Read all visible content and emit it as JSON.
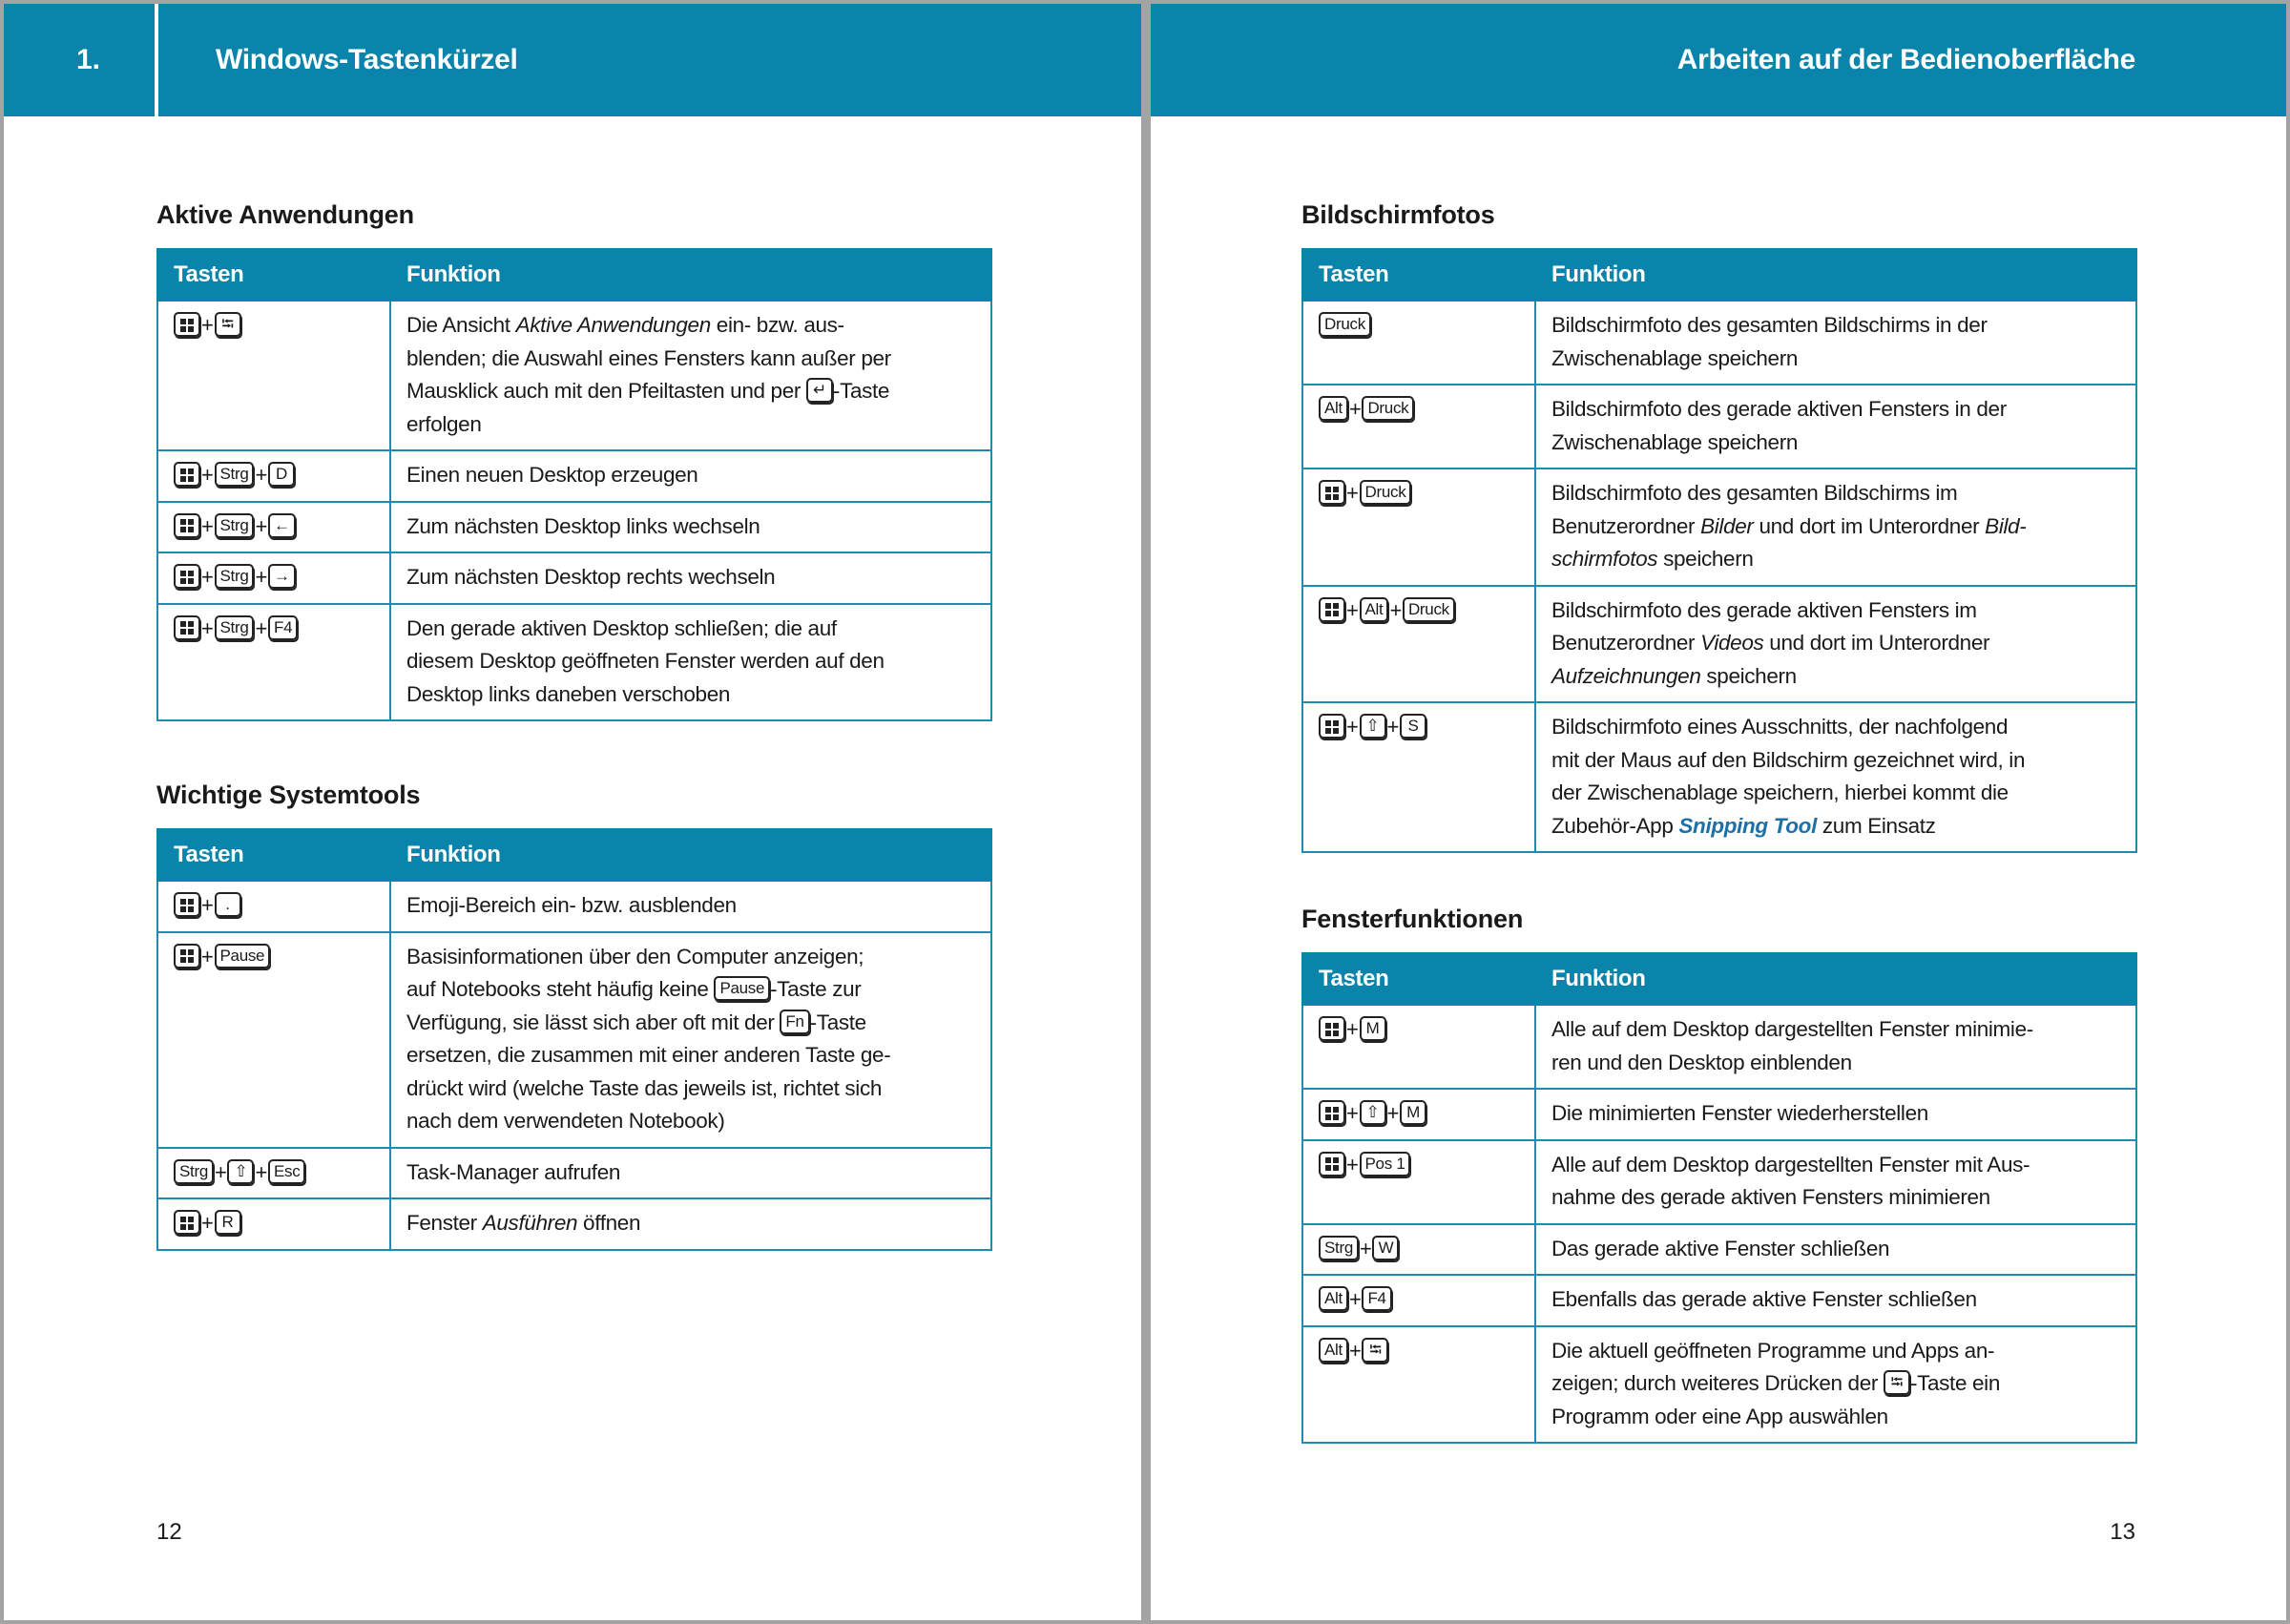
{
  "colors": {
    "accent": "#0a84aa",
    "link": "#1d6fa6"
  },
  "left_page": {
    "chapter_number": "1.",
    "chapter_title": "Windows-Tastenkürzel",
    "page_number": "12"
  },
  "right_page": {
    "running_title": "Arbeiten auf der Bedienoberfläche",
    "page_number": "13"
  },
  "tables": [
    {
      "heading": "Aktive Anwendungen",
      "col_keys": "Tasten",
      "col_function": "Funktion",
      "rows": [
        {
          "keys": [
            {
              "icon": "windows-logo"
            },
            {
              "icon": "tab",
              "label": "⭾"
            }
          ],
          "lines": [
            [
              {
                "t": "Die Ansicht "
              },
              {
                "t": "Aktive Anwendungen",
                "style": "italic"
              },
              {
                "t": " ein- bzw. aus-"
              }
            ],
            [
              {
                "t": "blenden; die Auswahl eines Fensters kann außer per"
              }
            ],
            [
              {
                "t": "Mausklick auch mit den Pfeiltasten und per "
              },
              {
                "key": {
                  "icon": "enter",
                  "label": "↵"
                }
              },
              {
                "t": "-Taste"
              }
            ],
            [
              {
                "t": "erfolgen"
              }
            ]
          ]
        },
        {
          "keys": [
            {
              "icon": "windows-logo"
            },
            {
              "label": "Strg"
            },
            {
              "label": "D"
            }
          ],
          "lines": [
            [
              {
                "t": "Einen neuen Desktop erzeugen"
              }
            ]
          ]
        },
        {
          "keys": [
            {
              "icon": "windows-logo"
            },
            {
              "label": "Strg"
            },
            {
              "icon": "arrow-left",
              "label": "←"
            }
          ],
          "lines": [
            [
              {
                "t": "Zum nächsten Desktop links wechseln"
              }
            ]
          ]
        },
        {
          "keys": [
            {
              "icon": "windows-logo"
            },
            {
              "label": "Strg"
            },
            {
              "icon": "arrow-right",
              "label": "→"
            }
          ],
          "lines": [
            [
              {
                "t": "Zum nächsten Desktop rechts wechseln"
              }
            ]
          ]
        },
        {
          "keys": [
            {
              "icon": "windows-logo"
            },
            {
              "label": "Strg"
            },
            {
              "label": "F4"
            }
          ],
          "lines": [
            [
              {
                "t": "Den gerade aktiven Desktop schließen; die auf"
              }
            ],
            [
              {
                "t": "diesem Desktop geöffneten Fenster werden auf den"
              }
            ],
            [
              {
                "t": "Desktop links daneben verschoben"
              }
            ]
          ]
        }
      ]
    },
    {
      "heading": "Wichtige Systemtools",
      "col_keys": "Tasten",
      "col_function": "Funktion",
      "rows": [
        {
          "keys": [
            {
              "icon": "windows-logo"
            },
            {
              "label": "."
            }
          ],
          "lines": [
            [
              {
                "t": "Emoji-Bereich ein- bzw. ausblenden"
              }
            ]
          ]
        },
        {
          "keys": [
            {
              "icon": "windows-logo"
            },
            {
              "label": "Pause"
            }
          ],
          "lines": [
            [
              {
                "t": "Basisinformationen über den Computer anzeigen;"
              }
            ],
            [
              {
                "t": "auf Notebooks steht häufig keine "
              },
              {
                "key": {
                  "label": "Pause"
                }
              },
              {
                "t": "-Taste zur"
              }
            ],
            [
              {
                "t": "Verfügung, sie lässt sich aber oft mit der "
              },
              {
                "key": {
                  "label": "Fn"
                }
              },
              {
                "t": "-Taste"
              }
            ],
            [
              {
                "t": "ersetzen, die zusammen mit einer anderen Taste ge-"
              }
            ],
            [
              {
                "t": "drückt wird (welche Taste das jeweils ist, richtet sich"
              }
            ],
            [
              {
                "t": "nach dem verwendeten Notebook)"
              }
            ]
          ]
        },
        {
          "keys": [
            {
              "label": "Strg"
            },
            {
              "icon": "shift",
              "label": "⇧"
            },
            {
              "label": "Esc"
            }
          ],
          "lines": [
            [
              {
                "t": "Task-Manager aufrufen"
              }
            ]
          ]
        },
        {
          "keys": [
            {
              "icon": "windows-logo"
            },
            {
              "label": "R"
            }
          ],
          "lines": [
            [
              {
                "t": "Fenster "
              },
              {
                "t": "Ausführen",
                "style": "italic"
              },
              {
                "t": " öffnen"
              }
            ]
          ]
        }
      ]
    },
    {
      "heading": "Bildschirmfotos",
      "col_keys": "Tasten",
      "col_function": "Funktion",
      "rows": [
        {
          "keys": [
            {
              "label": "Druck"
            }
          ],
          "lines": [
            [
              {
                "t": "Bildschirmfoto des gesamten Bildschirms in der"
              }
            ],
            [
              {
                "t": "Zwischenablage speichern"
              }
            ]
          ]
        },
        {
          "keys": [
            {
              "label": "Alt"
            },
            {
              "label": "Druck"
            }
          ],
          "lines": [
            [
              {
                "t": "Bildschirmfoto des gerade aktiven Fensters in der"
              }
            ],
            [
              {
                "t": "Zwischenablage speichern"
              }
            ]
          ]
        },
        {
          "keys": [
            {
              "icon": "windows-logo"
            },
            {
              "label": "Druck"
            }
          ],
          "lines": [
            [
              {
                "t": "Bildschirmfoto des gesamten Bildschirms im"
              }
            ],
            [
              {
                "t": "Benutzerordner "
              },
              {
                "t": "Bilder",
                "style": "italic"
              },
              {
                "t": " und dort im Unterordner "
              },
              {
                "t": "Bild-",
                "style": "italic"
              }
            ],
            [
              {
                "t": "schirmfotos",
                "style": "italic"
              },
              {
                "t": " speichern"
              }
            ]
          ]
        },
        {
          "keys": [
            {
              "icon": "windows-logo"
            },
            {
              "label": "Alt"
            },
            {
              "label": "Druck"
            }
          ],
          "lines": [
            [
              {
                "t": "Bildschirmfoto des gerade aktiven Fensters im"
              }
            ],
            [
              {
                "t": "Benutzerordner "
              },
              {
                "t": "Videos",
                "style": "italic"
              },
              {
                "t": " und dort im Unterordner"
              }
            ],
            [
              {
                "t": "Aufzeichnungen",
                "style": "italic"
              },
              {
                "t": " speichern"
              }
            ]
          ]
        },
        {
          "keys": [
            {
              "icon": "windows-logo"
            },
            {
              "icon": "shift",
              "label": "⇧"
            },
            {
              "label": "S"
            }
          ],
          "lines": [
            [
              {
                "t": "Bildschirmfoto eines Ausschnitts, der nachfolgend"
              }
            ],
            [
              {
                "t": "mit der Maus auf den Bildschirm gezeichnet wird, in"
              }
            ],
            [
              {
                "t": "der Zwischenablage speichern, hierbei kommt die"
              }
            ],
            [
              {
                "t": "Zubehör-App "
              },
              {
                "t": "Snipping Tool",
                "style": "link"
              },
              {
                "t": " zum Einsatz"
              }
            ]
          ]
        }
      ]
    },
    {
      "heading": "Fensterfunktionen",
      "col_keys": "Tasten",
      "col_function": "Funktion",
      "rows": [
        {
          "keys": [
            {
              "icon": "windows-logo"
            },
            {
              "label": "M"
            }
          ],
          "lines": [
            [
              {
                "t": "Alle auf dem Desktop dargestellten Fenster minimie-"
              }
            ],
            [
              {
                "t": "ren und den Desktop einblenden"
              }
            ]
          ]
        },
        {
          "keys": [
            {
              "icon": "windows-logo"
            },
            {
              "icon": "shift",
              "label": "⇧"
            },
            {
              "label": "M"
            }
          ],
          "lines": [
            [
              {
                "t": "Die minimierten Fenster wiederherstellen"
              }
            ]
          ]
        },
        {
          "keys": [
            {
              "icon": "windows-logo"
            },
            {
              "label": "Pos 1"
            }
          ],
          "lines": [
            [
              {
                "t": "Alle auf dem Desktop dargestellten Fenster mit Aus-"
              }
            ],
            [
              {
                "t": "nahme des gerade aktiven Fensters minimieren"
              }
            ]
          ]
        },
        {
          "keys": [
            {
              "label": "Strg"
            },
            {
              "label": "W"
            }
          ],
          "lines": [
            [
              {
                "t": "Das gerade aktive Fenster schließen"
              }
            ]
          ]
        },
        {
          "keys": [
            {
              "label": "Alt"
            },
            {
              "label": "F4"
            }
          ],
          "lines": [
            [
              {
                "t": "Ebenfalls das gerade aktive Fenster schließen"
              }
            ]
          ]
        },
        {
          "keys": [
            {
              "label": "Alt"
            },
            {
              "icon": "tab",
              "label": "⭾"
            }
          ],
          "lines": [
            [
              {
                "t": "Die aktuell geöffneten Programme und Apps an-"
              }
            ],
            [
              {
                "t": "zeigen; durch weiteres Drücken der "
              },
              {
                "key": {
                  "icon": "tab",
                  "label": "⭾"
                }
              },
              {
                "t": "-Taste ein"
              }
            ],
            [
              {
                "t": "Programm oder eine App auswählen"
              }
            ]
          ]
        }
      ]
    }
  ]
}
